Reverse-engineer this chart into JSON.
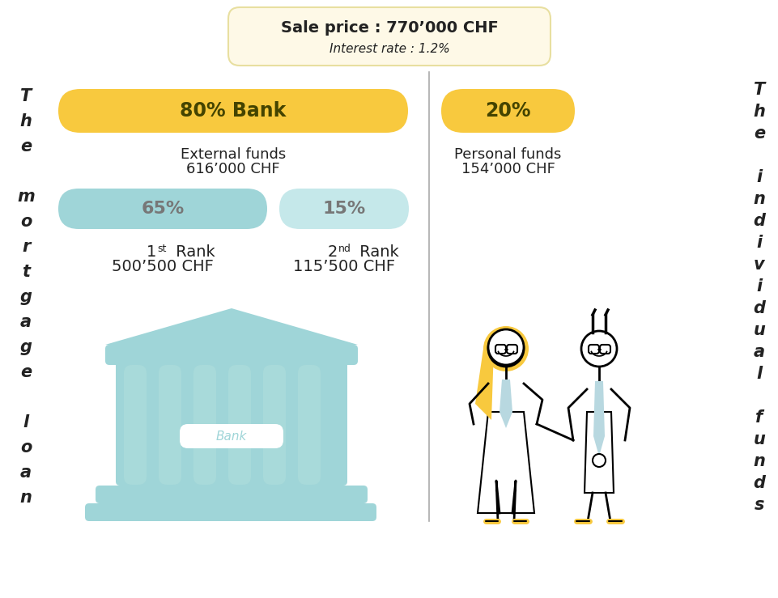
{
  "title_box_text1": "Sale price : 770’000 CHF",
  "title_box_text2": "Interest rate : 1.2%",
  "title_box_bg": "#fef9e7",
  "title_box_border": "#e8dfa0",
  "left_chars": [
    "T",
    "h",
    "e",
    "",
    "m",
    "o",
    "r",
    "t",
    "g",
    "a",
    "g",
    "e",
    "",
    "l",
    "o",
    "a",
    "n"
  ],
  "right_chars": [
    "T",
    "h",
    "e",
    "",
    "i",
    "n",
    "d",
    "i",
    "v",
    "i",
    "d",
    "u",
    "a",
    "l",
    "",
    "f",
    "u",
    "n",
    "d",
    "s"
  ],
  "bank_pct_text": "80% Bank",
  "bank_pct_bg": "#f8c93e",
  "personal_pct_text": "20%",
  "personal_pct_bg": "#f8c93e",
  "external_label1": "External funds",
  "external_label2": "616’000 CHF",
  "personal_label1": "Personal funds",
  "personal_label2": "154’000 CHF",
  "rank1_pct_text": "65%",
  "rank1_pct_bg": "#9fd5d8",
  "rank2_pct_text": "15%",
  "rank2_pct_bg": "#c5e8ea",
  "rank1_label1": "1st Rank",
  "rank1_label2": "500’500 CHF",
  "rank2_label1": "2nd Rank",
  "rank2_label2": "115’500 CHF",
  "divider_color": "#aaaaaa",
  "text_color": "#222222",
  "bg_color": "#ffffff",
  "bank_color": "#9fd5d8",
  "bank_light": "#b8e0e2",
  "bank_col_color": "#a8dada",
  "yellow": "#f8c93e",
  "hair_color": "#f8c93e",
  "tie_color": "#b8d8e0"
}
